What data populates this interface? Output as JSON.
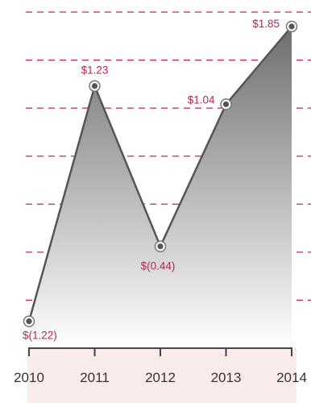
{
  "chart_data": {
    "type": "area",
    "title": "",
    "xlabel": "",
    "ylabel": "",
    "x": [
      "2010",
      "2011",
      "2012",
      "2013",
      "2014"
    ],
    "values": [
      -1.22,
      1.23,
      -0.44,
      1.04,
      1.85
    ],
    "data_labels": [
      "$(1.22)",
      "$1.23",
      "$(0.44)",
      "$1.04",
      "$1.85"
    ],
    "ylim": [
      -1.5,
      2.0
    ],
    "grid": true,
    "grid_style": "dashed",
    "legend": "none",
    "colors": {
      "line": "#555555",
      "gridline": "#c0285a",
      "data_label": "#b3264f",
      "axis_band": "#fbecec",
      "axis": "#444444",
      "area_top": "#6e6e6e",
      "area_bottom": "#ffffff"
    }
  }
}
